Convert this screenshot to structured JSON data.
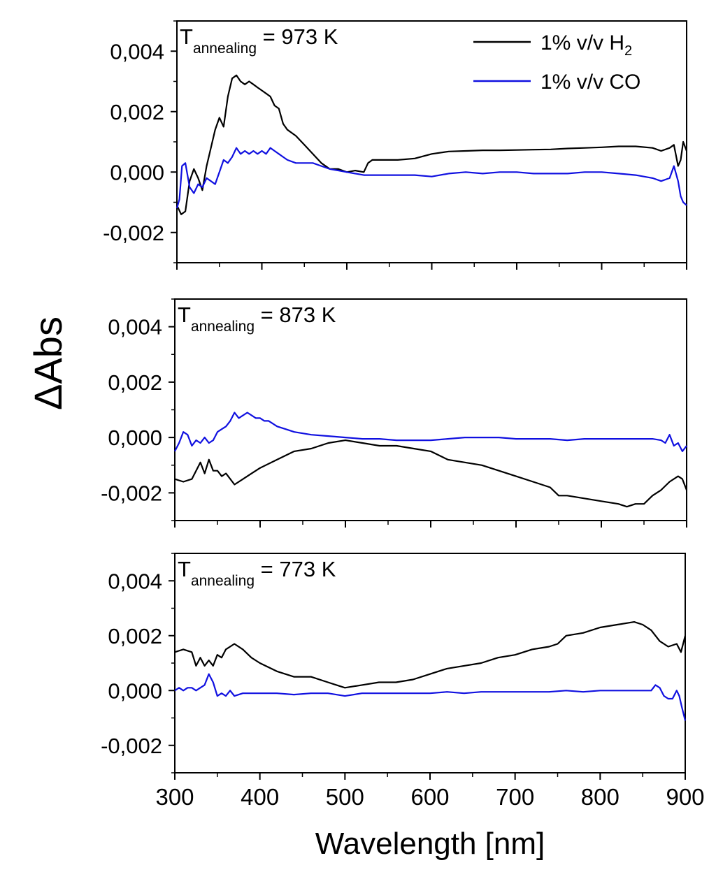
{
  "chart_data": {
    "type": "line",
    "xlabel": "Wavelength [nm]",
    "ylabel": "ΔAbs",
    "xlim": [
      300,
      900
    ],
    "ylim": [
      -0.003,
      0.005
    ],
    "xticks": [
      "300",
      "400",
      "500",
      "600",
      "700",
      "800",
      "900"
    ],
    "yticks": [
      "0,004",
      "0,002",
      "0,000",
      "-0,002"
    ],
    "legend": {
      "placement": "top-right",
      "entries": [
        {
          "prefix": "1% v/v H",
          "sub": "2",
          "color": "#000000"
        },
        {
          "prefix": "1% v/v CO",
          "sub": "",
          "color": "#1010e0"
        }
      ]
    },
    "panels": [
      {
        "label_main": "T",
        "label_sub": "annealing",
        "label_rest": "= 973 K",
        "series": [
          {
            "name": "1% v/v H2",
            "color": "#000000",
            "x": [
              300,
              305,
              310,
              315,
              320,
              325,
              330,
              335,
              340,
              345,
              350,
              355,
              360,
              365,
              370,
              375,
              380,
              385,
              390,
              395,
              400,
              405,
              410,
              415,
              420,
              425,
              430,
              440,
              450,
              460,
              470,
              480,
              490,
              500,
              510,
              520,
              525,
              530,
              540,
              550,
              560,
              580,
              600,
              620,
              640,
              660,
              680,
              700,
              720,
              740,
              760,
              780,
              800,
              820,
              840,
              860,
              870,
              880,
              885,
              890,
              893,
              896,
              900
            ],
            "y": [
              -0.0011,
              -0.0014,
              -0.0013,
              -0.0003,
              0.0001,
              -0.0002,
              -0.0006,
              0.0002,
              0.0008,
              0.0014,
              0.0018,
              0.0015,
              0.0025,
              0.0031,
              0.0032,
              0.003,
              0.0029,
              0.003,
              0.0029,
              0.0028,
              0.0027,
              0.0026,
              0.0025,
              0.0022,
              0.0021,
              0.0016,
              0.0014,
              0.0012,
              0.0009,
              0.0006,
              0.0003,
              0.0001,
              0.0001,
              0.0,
              5e-05,
              0.0,
              0.0003,
              0.0004,
              0.0004,
              0.0004,
              0.0004,
              0.00045,
              0.0006,
              0.00068,
              0.0007,
              0.00072,
              0.00072,
              0.00073,
              0.00074,
              0.00075,
              0.00078,
              0.0008,
              0.00082,
              0.00085,
              0.00085,
              0.0008,
              0.0007,
              0.0008,
              0.0009,
              0.0002,
              0.0004,
              0.001,
              0.0007
            ]
          },
          {
            "name": "1% v/v CO",
            "color": "#1010e0",
            "x": [
              300,
              303,
              306,
              310,
              315,
              320,
              325,
              330,
              335,
              340,
              345,
              350,
              355,
              360,
              365,
              370,
              375,
              380,
              385,
              390,
              395,
              400,
              405,
              410,
              415,
              420,
              425,
              430,
              440,
              450,
              460,
              470,
              480,
              490,
              500,
              520,
              540,
              560,
              580,
              600,
              620,
              640,
              660,
              680,
              700,
              720,
              740,
              760,
              780,
              800,
              820,
              840,
              860,
              870,
              880,
              885,
              890,
              893,
              896,
              900
            ],
            "y": [
              -0.0012,
              -0.0009,
              0.0002,
              0.0003,
              -0.0005,
              -0.0007,
              -0.0004,
              -0.0005,
              -0.0002,
              -0.0003,
              -0.0004,
              0.0,
              0.0004,
              0.0003,
              0.0005,
              0.0008,
              0.0006,
              0.0007,
              0.0006,
              0.0007,
              0.0006,
              0.0007,
              0.0006,
              0.0008,
              0.0007,
              0.0006,
              0.0005,
              0.0004,
              0.0003,
              0.0003,
              0.0003,
              0.0002,
              0.0001,
              5e-05,
              0.0,
              -0.0001,
              -0.0001,
              -0.0001,
              -0.0001,
              -0.00015,
              -5e-05,
              0.0,
              -5e-05,
              0.0,
              0.0,
              -5e-05,
              -5e-05,
              -5e-05,
              0.0,
              0.0,
              -5e-05,
              -0.0001,
              -0.0002,
              -0.0003,
              -0.0002,
              0.0002,
              -0.0003,
              -0.0008,
              -0.001,
              -0.0011
            ]
          }
        ]
      },
      {
        "label_main": "T",
        "label_sub": "annealing",
        "label_rest": "= 873 K",
        "series": [
          {
            "name": "1% v/v H2",
            "color": "#000000",
            "x": [
              300,
              310,
              320,
              330,
              335,
              340,
              345,
              350,
              355,
              360,
              370,
              380,
              390,
              400,
              420,
              440,
              460,
              480,
              500,
              520,
              540,
              560,
              580,
              600,
              620,
              640,
              660,
              680,
              700,
              720,
              740,
              750,
              760,
              780,
              800,
              820,
              830,
              840,
              850,
              860,
              870,
              880,
              890,
              895,
              900
            ],
            "y": [
              -0.0015,
              -0.0016,
              -0.0015,
              -0.0009,
              -0.0013,
              -0.0008,
              -0.0012,
              -0.0012,
              -0.0014,
              -0.0013,
              -0.0017,
              -0.0015,
              -0.0013,
              -0.0011,
              -0.0008,
              -0.0005,
              -0.0004,
              -0.0002,
              -0.0001,
              -0.0002,
              -0.0003,
              -0.0003,
              -0.0004,
              -0.0005,
              -0.0008,
              -0.0009,
              -0.001,
              -0.0012,
              -0.0014,
              -0.0016,
              -0.0018,
              -0.0021,
              -0.0021,
              -0.0022,
              -0.0023,
              -0.0024,
              -0.0025,
              -0.0024,
              -0.0024,
              -0.0021,
              -0.0019,
              -0.0016,
              -0.0014,
              -0.0015,
              -0.0019
            ]
          },
          {
            "name": "1% v/v CO",
            "color": "#1010e0",
            "x": [
              300,
              305,
              310,
              315,
              320,
              325,
              330,
              335,
              340,
              345,
              350,
              355,
              360,
              365,
              370,
              375,
              380,
              385,
              390,
              395,
              400,
              405,
              410,
              420,
              430,
              440,
              460,
              480,
              500,
              520,
              540,
              560,
              580,
              600,
              620,
              640,
              660,
              680,
              700,
              720,
              740,
              760,
              780,
              800,
              820,
              840,
              860,
              870,
              875,
              880,
              885,
              890,
              895,
              900
            ],
            "y": [
              -0.0005,
              -0.0002,
              0.0002,
              0.0001,
              -0.0003,
              -0.0001,
              -0.0002,
              0.0,
              -0.0002,
              -0.0001,
              0.0002,
              0.0003,
              0.0004,
              0.0006,
              0.0009,
              0.0007,
              0.0008,
              0.0009,
              0.0008,
              0.0007,
              0.0007,
              0.0006,
              0.0006,
              0.0004,
              0.0003,
              0.0002,
              0.0001,
              5e-05,
              0.0,
              -5e-05,
              -5e-05,
              -0.0001,
              -0.0001,
              -0.0001,
              -5e-05,
              0.0,
              0.0,
              0.0,
              -5e-05,
              -5e-05,
              -5e-05,
              -0.0001,
              -5e-05,
              -5e-05,
              -5e-05,
              -5e-05,
              -5e-05,
              -0.0001,
              -0.0002,
              0.0001,
              -0.0003,
              -0.0002,
              -0.0005,
              -0.0003
            ]
          }
        ]
      },
      {
        "label_main": "T",
        "label_sub": "annealing",
        "label_rest": "= 773 K",
        "series": [
          {
            "name": "1% v/v H2",
            "color": "#000000",
            "x": [
              300,
              310,
              320,
              325,
              330,
              335,
              340,
              345,
              350,
              355,
              360,
              370,
              380,
              390,
              400,
              420,
              440,
              460,
              480,
              490,
              500,
              520,
              540,
              560,
              580,
              600,
              620,
              640,
              660,
              680,
              700,
              720,
              740,
              750,
              760,
              780,
              800,
              820,
              840,
              850,
              860,
              870,
              880,
              890,
              895,
              900
            ],
            "y": [
              0.0014,
              0.0015,
              0.0014,
              0.0009,
              0.0012,
              0.0009,
              0.0011,
              0.0009,
              0.0013,
              0.0012,
              0.0015,
              0.0017,
              0.0015,
              0.0012,
              0.001,
              0.0007,
              0.0005,
              0.0005,
              0.0003,
              0.0002,
              0.0001,
              0.0002,
              0.0003,
              0.0003,
              0.0004,
              0.0006,
              0.0008,
              0.0009,
              0.001,
              0.0012,
              0.0013,
              0.0015,
              0.0016,
              0.0017,
              0.002,
              0.0021,
              0.0023,
              0.0024,
              0.0025,
              0.0024,
              0.0022,
              0.0018,
              0.0016,
              0.0017,
              0.0014,
              0.002
            ]
          },
          {
            "name": "1% v/v CO",
            "color": "#1010e0",
            "x": [
              300,
              305,
              310,
              315,
              320,
              325,
              330,
              335,
              340,
              345,
              350,
              355,
              360,
              365,
              370,
              380,
              390,
              400,
              420,
              440,
              460,
              480,
              500,
              520,
              540,
              560,
              580,
              600,
              620,
              640,
              660,
              680,
              700,
              720,
              740,
              760,
              780,
              800,
              820,
              840,
              860,
              865,
              870,
              875,
              880,
              885,
              890,
              893,
              896,
              900
            ],
            "y": [
              0.0,
              0.0001,
              0.0,
              0.0001,
              0.0001,
              0.0,
              0.0001,
              0.0002,
              0.0006,
              0.0003,
              -0.0002,
              -0.0001,
              -0.0002,
              0.0,
              -0.0002,
              -0.0001,
              -0.0001,
              -0.0001,
              -0.0001,
              -0.00015,
              -0.0001,
              -0.0001,
              -0.0002,
              -0.0001,
              -0.0001,
              -0.0001,
              -0.0001,
              -0.0001,
              -5e-05,
              -0.0001,
              -5e-05,
              -5e-05,
              -5e-05,
              -5e-05,
              -5e-05,
              0.0,
              -5e-05,
              0.0,
              0.0,
              0.0,
              0.0,
              0.0002,
              0.0001,
              -0.0002,
              -0.0003,
              -0.0003,
              0.0,
              -0.0002,
              -0.0006,
              -0.0011
            ]
          }
        ]
      }
    ]
  }
}
